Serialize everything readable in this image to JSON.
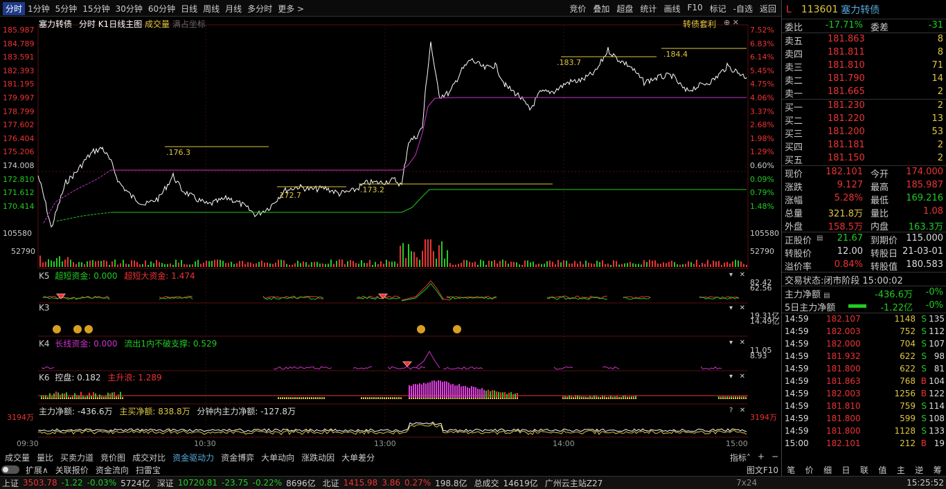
{
  "toolbar": {
    "tabs": [
      "分时",
      "1分钟",
      "5分钟",
      "15分钟",
      "30分钟",
      "60分钟",
      "日线",
      "周线",
      "月线",
      "多分时",
      "更多 >"
    ],
    "tools": [
      "竞价",
      "叠加",
      "超盘",
      "统计",
      "画线",
      "F10",
      "标记",
      "-自选",
      "返回"
    ]
  },
  "chart_header": {
    "name": "塞力转债",
    "mode": "分时",
    "k1": "K1日线主图",
    "vol": "成交量",
    "full": "满占坐标",
    "right_tag": "转债套利",
    "btns": "⊕ ✕"
  },
  "y_left": [
    "185.987",
    "184.789",
    "183.591",
    "182.393",
    "181.195",
    "179.997",
    "178.799",
    "177.602",
    "176.404",
    "175.206",
    "174.008",
    "172.810",
    "171.612",
    "170.414"
  ],
  "y_right": [
    "7.52%",
    "6.83%",
    "6.14%",
    "5.45%",
    "4.75%",
    "4.06%",
    "3.37%",
    "2.68%",
    "1.98%",
    "1.29%",
    "0.60%",
    "0.09%",
    "0.79%",
    "1.48%"
  ],
  "vol_labels": {
    "left_top": "105580",
    "left_bot": "52790",
    "right_top": "105580",
    "right_bot": "52790"
  },
  "annotations": {
    "a1": ".176.3",
    "a2": ".172.7",
    "a3": ".173.2",
    "a4": ".183.7",
    "a5": ".184.4"
  },
  "panes": {
    "k5": {
      "name": "K5",
      "f1": "超短资金: 0.000",
      "f2": "超短大资金: 1.474",
      "r1": "82.42",
      "r2": "62.56"
    },
    "k3": {
      "name": "K3",
      "r1": "19.31亿",
      "r2": "14.49亿"
    },
    "k4": {
      "name": "K4",
      "f1": "长线资金: 0.000",
      "f2": "流出1内不破支撑: 0.529",
      "r1": "11.05",
      "r2": "8.93"
    },
    "k6": {
      "name": "K6",
      "f1": "控盘: 0.182",
      "f2": "主升浪: 1.289"
    },
    "flow": {
      "f1": "主力净额: -436.6万",
      "f2": "主买净额: 838.8万",
      "f3": "分钟内主力净额: -127.8万",
      "left": "3194万",
      "right": "3194万"
    }
  },
  "pane_buttons": {
    "arrow": "▾",
    "close": "✕",
    "help": "?"
  },
  "xaxis": [
    "09:30",
    "10:30",
    "13:00",
    "14:00",
    "15:00"
  ],
  "bottom_tabs": [
    "成交量",
    "量比",
    "买卖力道",
    "竞价图",
    "成交对比",
    "资金驱动力",
    "资金博弈",
    "大单动向",
    "涨跌动因",
    "大单差分"
  ],
  "bottom_tabs_active": 5,
  "bottom_right": [
    "指标˄",
    "+",
    "−"
  ],
  "bottom_tabs2": [
    "扩展∧",
    "关联报价",
    "资金流向",
    "扫雷宝"
  ],
  "graph_f10": "图文F10",
  "status": {
    "sh_label": "上证",
    "sh_val": "3503.78",
    "sh_chg": "-1.22",
    "sh_pct": "-0.03%",
    "sh_amt": "5724亿",
    "sz_label": "深证",
    "sz_val": "10720.81",
    "sz_chg": "-23.75",
    "sz_pct": "-0.22%",
    "sz_amt": "8696亿",
    "bz_label": "北证",
    "bz_val": "1415.98",
    "bz_chg": "3.86",
    "bz_pct": "0.27%",
    "bz_amt": "198.8亿",
    "total_label": "总成交",
    "total_val": "14619亿",
    "site": "广州云主站Z27",
    "ratio": "7x24",
    "time": "15:25:52"
  },
  "quote": {
    "l": "L",
    "code": "113601",
    "name": "塞力转债",
    "weibi_label": "委比",
    "weibi": "-17.71%",
    "weicha_label": "委差",
    "weicha": "-31",
    "sells": [
      {
        "label": "卖五",
        "price": "181.863",
        "vol": "8"
      },
      {
        "label": "卖四",
        "price": "181.811",
        "vol": "8"
      },
      {
        "label": "卖三",
        "price": "181.810",
        "vol": "71"
      },
      {
        "label": "卖二",
        "price": "181.790",
        "vol": "14"
      },
      {
        "label": "卖一",
        "price": "181.665",
        "vol": "2"
      }
    ],
    "buys": [
      {
        "label": "买一",
        "price": "181.230",
        "vol": "2"
      },
      {
        "label": "买二",
        "price": "181.220",
        "vol": "13"
      },
      {
        "label": "买三",
        "price": "181.200",
        "vol": "53"
      },
      {
        "label": "买四",
        "price": "181.181",
        "vol": "2"
      },
      {
        "label": "买五",
        "price": "181.150",
        "vol": "2"
      }
    ],
    "stats": [
      {
        "l1": "现价",
        "v1": "182.101",
        "c1": "red",
        "l2": "今开",
        "v2": "174.000",
        "c2": "red"
      },
      {
        "l1": "涨跌",
        "v1": "9.127",
        "c1": "red",
        "l2": "最高",
        "v2": "185.987",
        "c2": "red"
      },
      {
        "l1": "涨幅",
        "v1": "5.28%",
        "c1": "red",
        "l2": "最低",
        "v2": "169.216",
        "c2": "green"
      },
      {
        "l1": "总量",
        "v1": "321.8万",
        "c1": "yellow",
        "l2": "量比",
        "v2": "1.08",
        "c2": "red"
      },
      {
        "l1": "外盘",
        "v1": "158.5万",
        "c1": "red",
        "l2": "内盘",
        "v2": "163.3万",
        "c2": "green"
      }
    ],
    "stock": [
      {
        "l1": "正股价",
        "v1": "21.67",
        "c1": "green",
        "l2": "到期价",
        "v2": "115.000",
        "c2": "white"
      },
      {
        "l1": "转股价",
        "v1": "12.00",
        "c1": "white",
        "l2": "转股日",
        "v2": "21-03-01",
        "c2": "white"
      },
      {
        "l1": "溢价率",
        "v1": "0.84%",
        "c1": "red",
        "l2": "转股值",
        "v2": "180.583",
        "c2": "white"
      }
    ],
    "trade_state_label": "交易状态:",
    "trade_state": "闭市阶段",
    "trade_time": "15:00:02",
    "main_net_label": "主力净额",
    "main_net": "-436.6万",
    "main_net_pct": "-0%",
    "five_day_label": "5日主力净额",
    "five_day": "-1.22亿",
    "five_day_pct": "-0%",
    "ticks": [
      {
        "t": "14:59",
        "p": "182.107",
        "pc": "red",
        "v": "1148",
        "vc": "yellow",
        "s": "S",
        "sc": "green",
        "n": "135"
      },
      {
        "t": "14:59",
        "p": "182.003",
        "pc": "red",
        "v": "752",
        "vc": "yellow",
        "s": "S",
        "sc": "green",
        "n": "112"
      },
      {
        "t": "14:59",
        "p": "182.000",
        "pc": "red",
        "v": "704",
        "vc": "yellow",
        "s": "S",
        "sc": "green",
        "n": "107"
      },
      {
        "t": "14:59",
        "p": "181.932",
        "pc": "red",
        "v": "622",
        "vc": "yellow",
        "s": "S",
        "sc": "green",
        "n": "98"
      },
      {
        "t": "14:59",
        "p": "181.800",
        "pc": "red",
        "v": "622",
        "vc": "yellow",
        "s": "S",
        "sc": "green",
        "n": "81"
      },
      {
        "t": "14:59",
        "p": "181.863",
        "pc": "red",
        "v": "768",
        "vc": "yellow",
        "s": "B",
        "sc": "red",
        "n": "104"
      },
      {
        "t": "14:59",
        "p": "182.003",
        "pc": "red",
        "v": "1256",
        "vc": "yellow",
        "s": "B",
        "sc": "red",
        "n": "122"
      },
      {
        "t": "14:59",
        "p": "181.810",
        "pc": "red",
        "v": "759",
        "vc": "yellow",
        "s": "S",
        "sc": "green",
        "n": "114"
      },
      {
        "t": "14:59",
        "p": "181.800",
        "pc": "red",
        "v": "599",
        "vc": "yellow",
        "s": "S",
        "sc": "green",
        "n": "108"
      },
      {
        "t": "14:59",
        "p": "181.800",
        "pc": "red",
        "v": "1128",
        "vc": "yellow",
        "s": "S",
        "sc": "green",
        "n": "133"
      },
      {
        "t": "15:00",
        "p": "182.101",
        "pc": "red",
        "v": "212",
        "vc": "yellow",
        "s": "B",
        "sc": "red",
        "n": "19"
      }
    ],
    "bottom_tabs": [
      "笔",
      "价",
      "细",
      "日",
      "联",
      "值",
      "主",
      "逆",
      "筹"
    ]
  },
  "colors": {
    "up": "#e33",
    "down": "#2c2",
    "price": "#ffffff",
    "avg": "#cc33cc",
    "accent": "#e0c840",
    "link": "#5ad"
  }
}
